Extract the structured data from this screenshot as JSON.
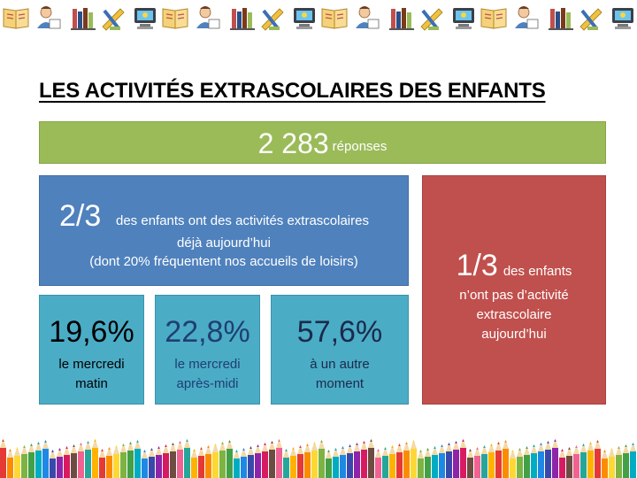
{
  "title": "LES ACTIVITÉS EXTRASCOLAIRES DES ENFANTS",
  "responses": {
    "count": "2 283",
    "label": "réponses"
  },
  "with_activities": {
    "fraction": "2/3",
    "line1": "des enfants ont des activités extrascolaires",
    "line2": "déjà aujourd’hui",
    "line3": "(dont 20% fréquentent nos accueils de loisirs)"
  },
  "breakdown": [
    {
      "percent": "19,6%",
      "label_line1": "le mercredi",
      "label_line2": "matin"
    },
    {
      "percent": "22,8%",
      "label_line1": "le mercredi",
      "label_line2": "après-midi"
    },
    {
      "percent": "57,6%",
      "label_line1": "à un autre",
      "label_line2": "moment"
    }
  ],
  "without_activities": {
    "fraction": "1/3",
    "line1": "des enfants",
    "line2": "n’ont pas d’activité",
    "line3": "extrascolaire",
    "line4": "aujourd’hui"
  },
  "colors": {
    "green": "#9bbb59",
    "blue": "#4f81bd",
    "red": "#c0504d",
    "teal": "#4bacc6"
  }
}
